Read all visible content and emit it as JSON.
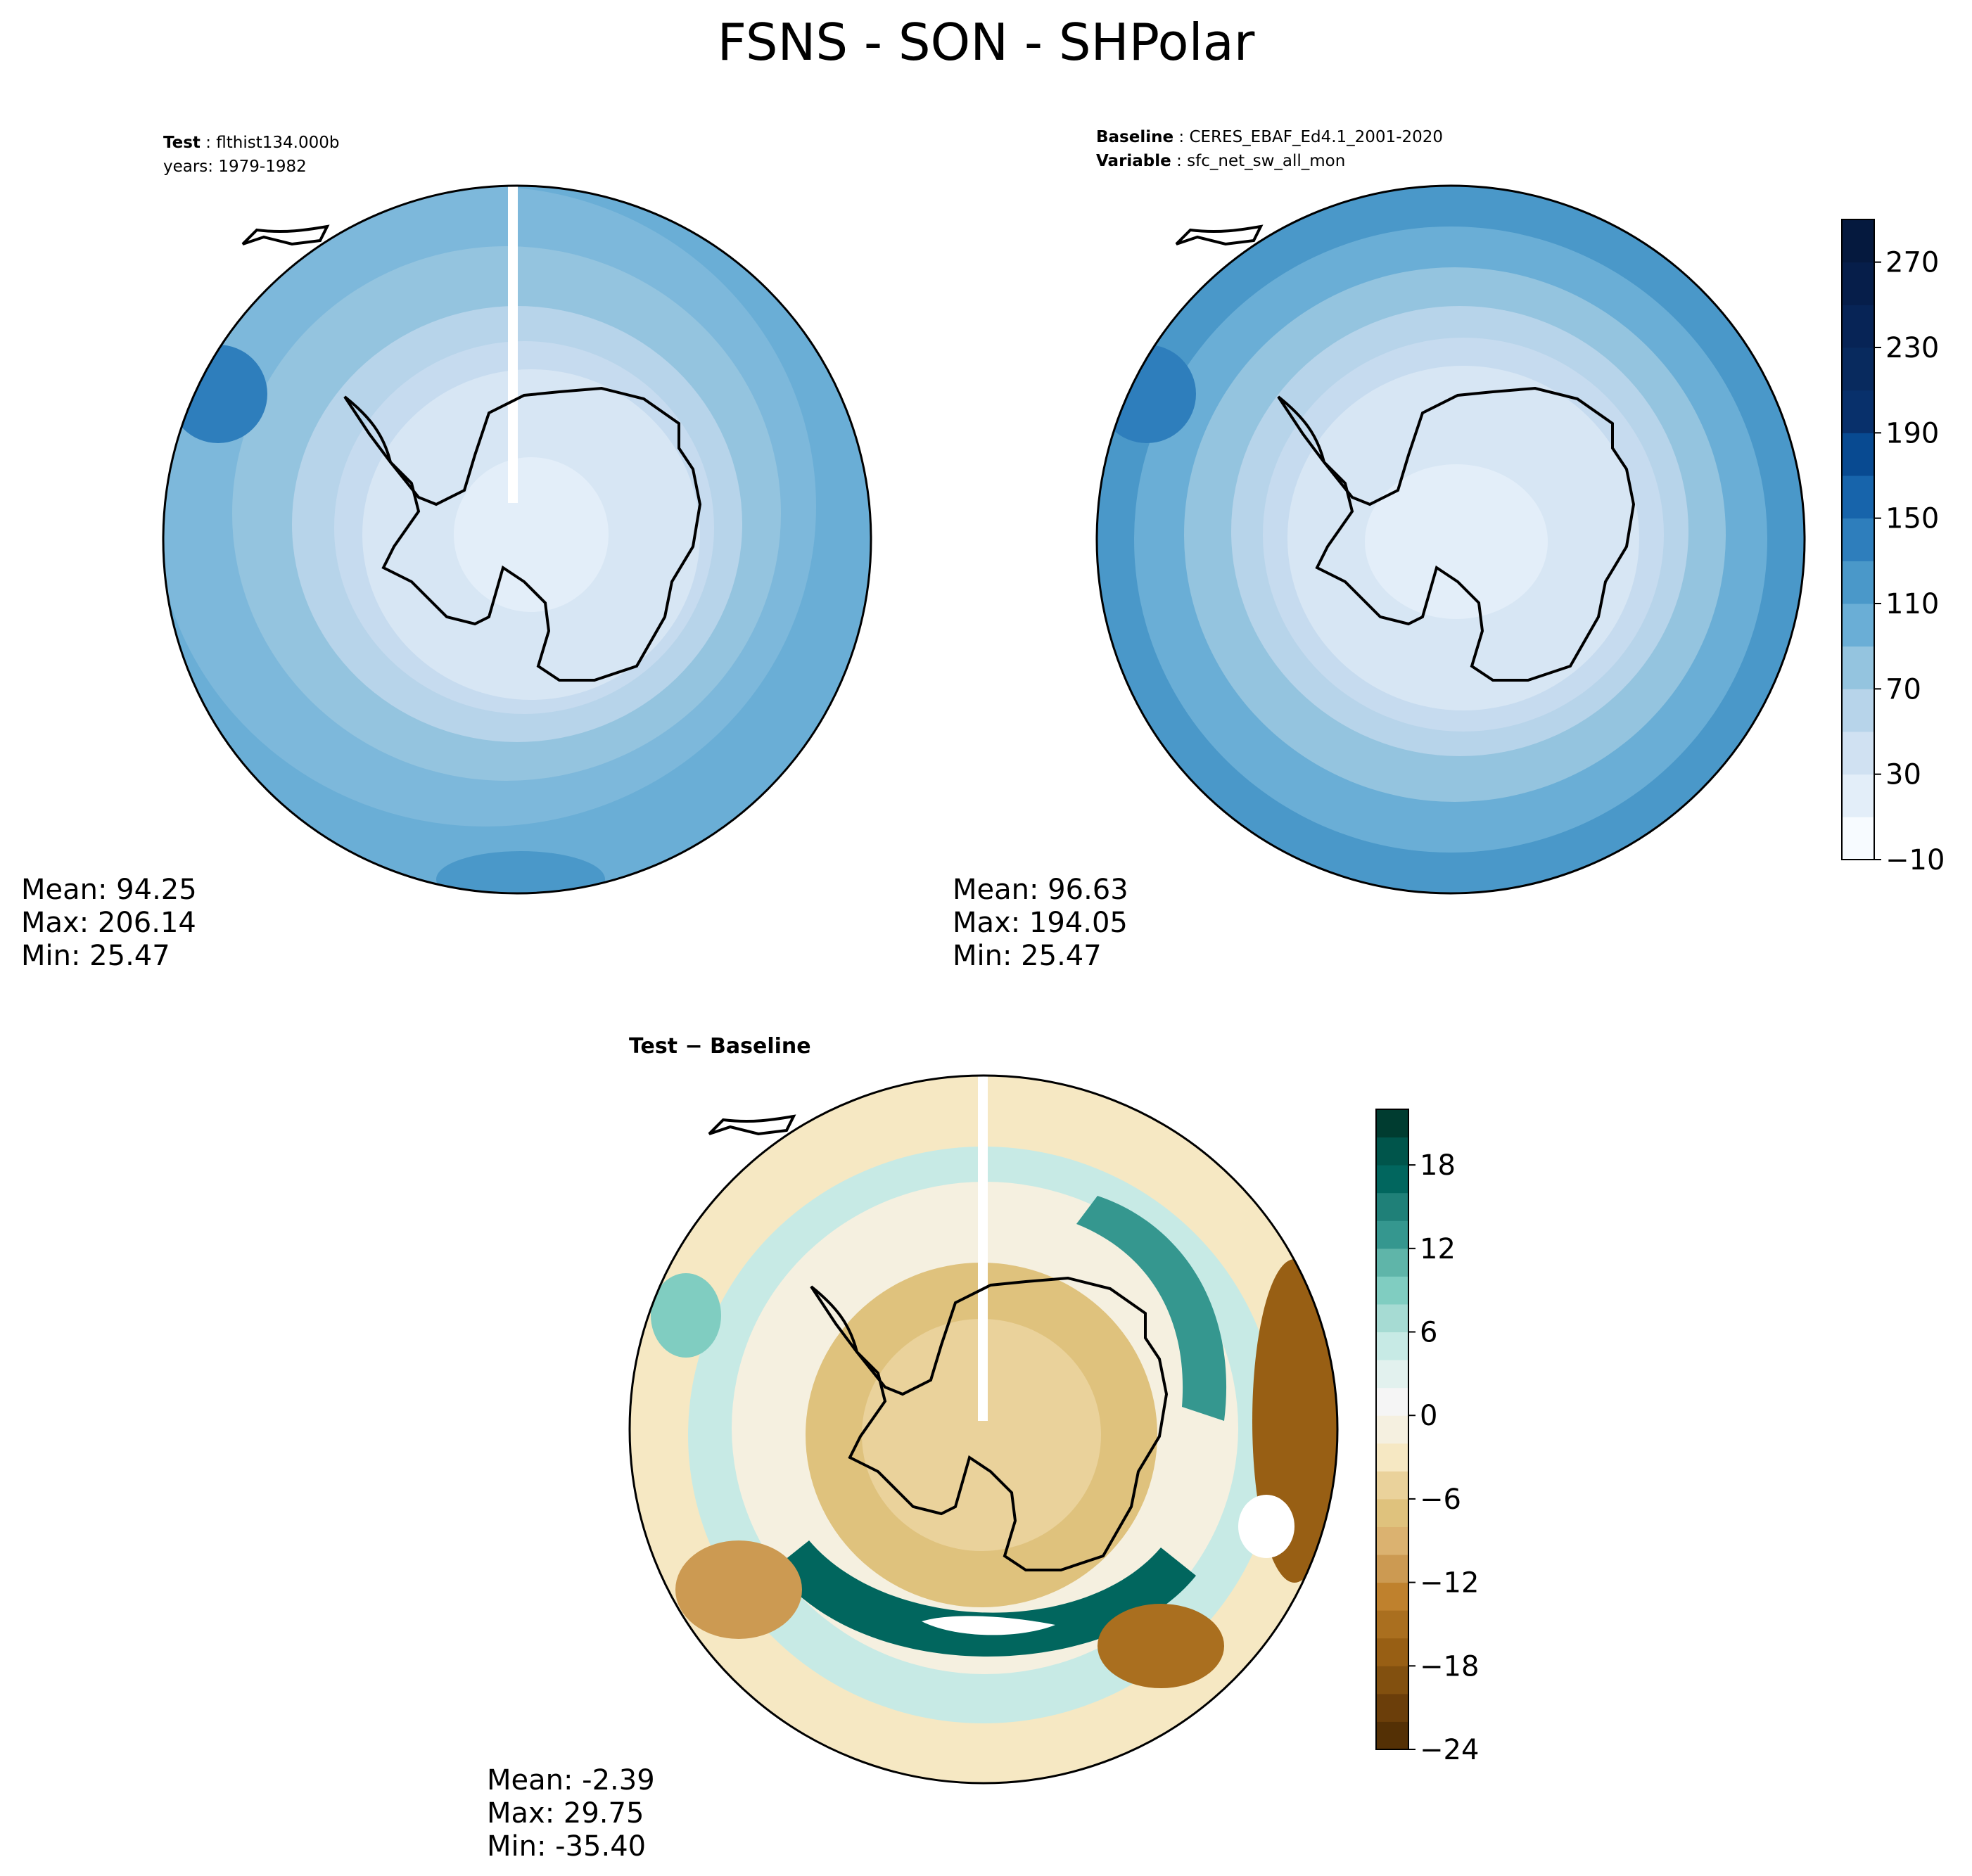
{
  "title": "FSNS - SON - SHPolar",
  "panels": {
    "test": {
      "label_key": "Test",
      "label_value": "flthist134.000b",
      "years": "years: 1979-1982",
      "stats": {
        "mean": "Mean: 94.25",
        "max": "Max: 206.14",
        "min": "Min: 25.47"
      }
    },
    "baseline": {
      "label_key": "Baseline",
      "label_value": "CERES_EBAF_Ed4.1_2001-2020",
      "var_key": "Variable",
      "var_value": "sfc_net_sw_all_mon",
      "stats": {
        "mean": "Mean: 96.63",
        "max": "Max: 194.05",
        "min": "Min: 25.47"
      }
    },
    "diff": {
      "title": "Test − Baseline",
      "stats": {
        "mean": "Mean: -2.39",
        "max": "Max: 29.75",
        "min": "Min: -35.40"
      }
    }
  },
  "chart_data": [
    {
      "type": "heatmap",
      "projection": "south polar stereographic",
      "panel": "Test",
      "mean": 94.25,
      "max": 206.14,
      "min": 25.47,
      "colormap": "Blues"
    },
    {
      "type": "heatmap",
      "projection": "south polar stereographic",
      "panel": "Baseline",
      "mean": 96.63,
      "max": 194.05,
      "min": 25.47,
      "colormap": "Blues",
      "colorbar": {
        "range": [
          -10,
          290
        ],
        "ticks": [
          -10,
          30,
          70,
          110,
          150,
          190,
          230,
          270
        ],
        "tick_labels": [
          "−10",
          "30",
          "70",
          "110",
          "150",
          "190",
          "230",
          "270"
        ],
        "levels": [
          -10,
          10,
          30,
          50,
          70,
          90,
          110,
          130,
          150,
          170,
          190,
          210,
          230,
          250,
          270,
          290
        ],
        "colors": [
          "#f7fbff",
          "#e3eef9",
          "#d0e1f2",
          "#b7d4ea",
          "#94c4df",
          "#6aaed6",
          "#4a98c9",
          "#2e7ebc",
          "#1764ab",
          "#084a91",
          "#08306b",
          "#082a5e",
          "#072456",
          "#061e4a",
          "#05193e"
        ]
      }
    },
    {
      "type": "heatmap",
      "projection": "south polar stereographic",
      "panel": "Test − Baseline",
      "mean": -2.39,
      "max": 29.75,
      "min": -35.4,
      "colormap": "BrBG",
      "colorbar": {
        "range": [
          -24,
          22
        ],
        "ticks": [
          -24,
          -18,
          -12,
          -6,
          0,
          6,
          12,
          18
        ],
        "tick_labels": [
          "−24",
          "−18",
          "−12",
          "−6",
          "0",
          "6",
          "12",
          "18"
        ],
        "colors": [
          "#543005",
          "#6b3e0a",
          "#82500f",
          "#985f14",
          "#aa6f1f",
          "#bf812d",
          "#cc9a52",
          "#dbb270",
          "#dfc27d",
          "#ead29b",
          "#f6e8c3",
          "#f5f0e0",
          "#f5f5f5",
          "#e2f1ee",
          "#c7eae5",
          "#a6dbd3",
          "#80cdc1",
          "#5fb5a9",
          "#35978f",
          "#1f8078",
          "#01665e",
          "#00554b",
          "#003c30"
        ]
      }
    }
  ]
}
